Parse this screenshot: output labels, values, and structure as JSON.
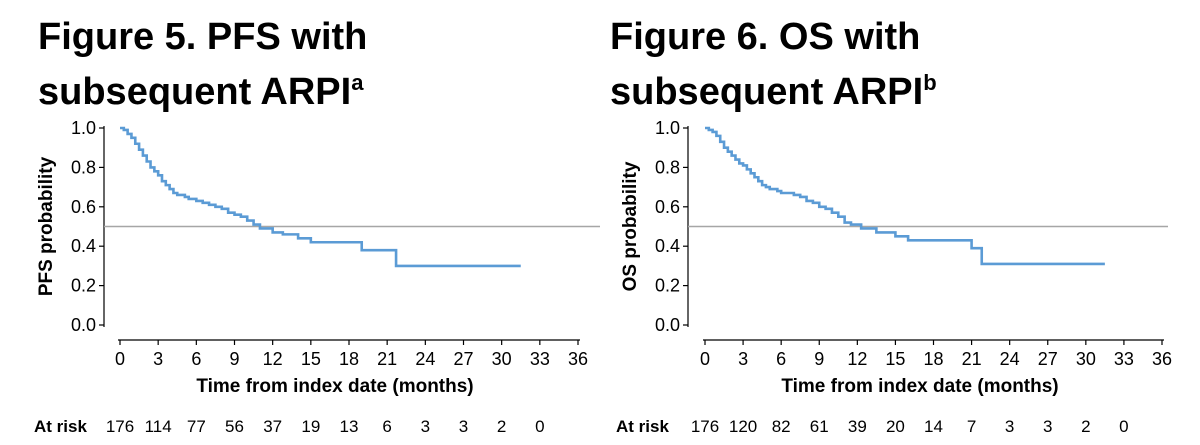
{
  "chart_data": [
    {
      "type": "line",
      "title": "Figure 5. PFS with subsequent ARPI",
      "title_line1": "Figure 5. PFS with",
      "title_line2": "subsequent ARPI",
      "title_superscript": "a",
      "xlabel": "Time from index date (months)",
      "ylabel": "PFS probability",
      "xlim": [
        0,
        36
      ],
      "ylim": [
        0,
        1
      ],
      "x_ticks": [
        "0",
        "3",
        "6",
        "9",
        "12",
        "15",
        "18",
        "21",
        "24",
        "27",
        "30",
        "33",
        "36"
      ],
      "y_ticks": [
        "0.0",
        "0.2",
        "0.4",
        "0.6",
        "0.8",
        "1.0"
      ],
      "reference_line_y": 0.5,
      "series": [
        {
          "color": "#5b9bd5",
          "x": [
            0,
            0.3,
            0.6,
            0.9,
            1.2,
            1.5,
            1.8,
            2.1,
            2.4,
            2.7,
            3.0,
            3.3,
            3.6,
            3.9,
            4.2,
            4.5,
            4.8,
            5.1,
            5.4,
            5.7,
            6.0,
            6.5,
            7.0,
            7.5,
            8.0,
            8.5,
            9.0,
            9.5,
            10.0,
            10.5,
            11.0,
            12.0,
            12.8,
            14.0,
            15.0,
            16.5,
            19.0,
            21.0,
            21.7,
            25.0,
            28.0,
            31.5
          ],
          "y": [
            1.0,
            0.99,
            0.97,
            0.95,
            0.92,
            0.89,
            0.86,
            0.83,
            0.8,
            0.78,
            0.76,
            0.73,
            0.71,
            0.69,
            0.67,
            0.66,
            0.66,
            0.65,
            0.64,
            0.64,
            0.63,
            0.62,
            0.61,
            0.6,
            0.59,
            0.57,
            0.56,
            0.55,
            0.53,
            0.51,
            0.49,
            0.47,
            0.46,
            0.44,
            0.42,
            0.42,
            0.38,
            0.38,
            0.3,
            0.3,
            0.3,
            0.3
          ]
        }
      ],
      "at_risk_label": "At risk",
      "at_risk_values": [
        "176",
        "114",
        "77",
        "56",
        "37",
        "19",
        "13",
        "6",
        "3",
        "3",
        "2",
        "0"
      ]
    },
    {
      "type": "line",
      "title": "Figure 6. OS with subsequent ARPI",
      "title_line1": "Figure 6. OS with",
      "title_line2": "subsequent ARPI",
      "title_superscript": "b",
      "xlabel": "Time from index date (months)",
      "ylabel": "OS probability",
      "xlim": [
        0,
        36
      ],
      "ylim": [
        0,
        1
      ],
      "x_ticks": [
        "0",
        "3",
        "6",
        "9",
        "12",
        "15",
        "18",
        "21",
        "24",
        "27",
        "30",
        "33",
        "36"
      ],
      "y_ticks": [
        "0.0",
        "0.2",
        "0.4",
        "0.6",
        "0.8",
        "1.0"
      ],
      "reference_line_y": 0.5,
      "series": [
        {
          "color": "#5b9bd5",
          "x": [
            0,
            0.3,
            0.6,
            0.9,
            1.2,
            1.5,
            1.8,
            2.1,
            2.4,
            2.7,
            3.0,
            3.3,
            3.6,
            3.9,
            4.2,
            4.5,
            4.8,
            5.1,
            5.4,
            5.7,
            6.0,
            6.5,
            7.0,
            7.5,
            8.0,
            8.5,
            9.0,
            9.5,
            10.0,
            10.5,
            11.0,
            11.5,
            12.3,
            13.5,
            15.0,
            16.0,
            19.5,
            21.0,
            21.8,
            25.0,
            28.0,
            31.5
          ],
          "y": [
            1.0,
            0.99,
            0.98,
            0.96,
            0.93,
            0.9,
            0.88,
            0.86,
            0.84,
            0.82,
            0.81,
            0.79,
            0.77,
            0.75,
            0.73,
            0.71,
            0.7,
            0.69,
            0.69,
            0.68,
            0.67,
            0.67,
            0.66,
            0.65,
            0.63,
            0.62,
            0.6,
            0.59,
            0.57,
            0.55,
            0.52,
            0.51,
            0.49,
            0.47,
            0.45,
            0.43,
            0.43,
            0.39,
            0.31,
            0.31,
            0.31,
            0.31
          ]
        }
      ],
      "at_risk_label": "At risk",
      "at_risk_values": [
        "176",
        "120",
        "82",
        "61",
        "39",
        "20",
        "14",
        "7",
        "3",
        "3",
        "2",
        "0"
      ]
    }
  ]
}
